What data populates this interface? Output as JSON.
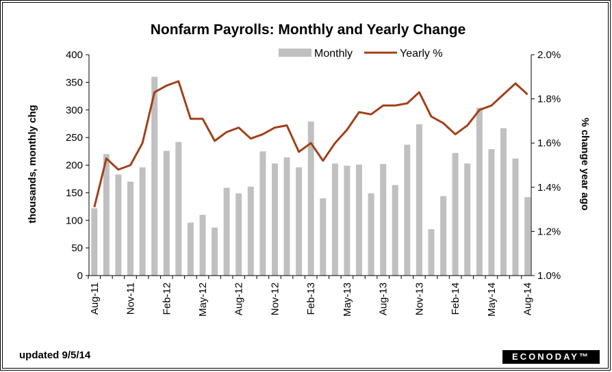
{
  "chart_data": {
    "type": "bar+line",
    "title": "Nonfarm Payrolls: Monthly and Yearly Change",
    "ylabel_left": "thousands, monthly chg",
    "ylabel_right": "% change year ago",
    "ylim_left": [
      0,
      400
    ],
    "ylim_right": [
      1.0,
      2.0
    ],
    "left_ticks": [
      "0",
      "50",
      "100",
      "150",
      "200",
      "250",
      "300",
      "350",
      "400"
    ],
    "right_ticks": [
      "1.0%",
      "1.2%",
      "1.4%",
      "1.6%",
      "1.8%",
      "2.0%"
    ],
    "x_tick_labels": [
      "Aug-11",
      "Nov-11",
      "Feb-12",
      "May-12",
      "Aug-12",
      "Nov-12",
      "Feb-13",
      "May-13",
      "Aug-13",
      "Nov-13",
      "Feb-14",
      "May-14",
      "Aug-14"
    ],
    "months": [
      "Aug-11",
      "Sep-11",
      "Oct-11",
      "Nov-11",
      "Dec-11",
      "Jan-12",
      "Feb-12",
      "Mar-12",
      "Apr-12",
      "May-12",
      "Jun-12",
      "Jul-12",
      "Aug-12",
      "Sep-12",
      "Oct-12",
      "Nov-12",
      "Dec-12",
      "Jan-13",
      "Feb-13",
      "Mar-13",
      "Apr-13",
      "May-13",
      "Jun-13",
      "Jul-13",
      "Aug-13",
      "Sep-13",
      "Oct-13",
      "Nov-13",
      "Dec-13",
      "Jan-14",
      "Feb-14",
      "Mar-14",
      "Apr-14",
      "May-14",
      "Jun-14",
      "Jul-14",
      "Aug-14"
    ],
    "series": [
      {
        "name": "Monthly",
        "type": "bar",
        "color": "#c0c0c0",
        "values": [
          122,
          220,
          183,
          170,
          196,
          360,
          226,
          242,
          96,
          110,
          87,
          159,
          149,
          161,
          225,
          203,
          214,
          196,
          279,
          140,
          203,
          199,
          201,
          149,
          202,
          164,
          237,
          274,
          84,
          144,
          222,
          203,
          304,
          229,
          267,
          212,
          142
        ]
      },
      {
        "name": "Yearly %",
        "type": "line",
        "color": "#a0401a",
        "values": [
          1.31,
          1.53,
          1.48,
          1.5,
          1.6,
          1.83,
          1.86,
          1.88,
          1.71,
          1.71,
          1.61,
          1.65,
          1.67,
          1.62,
          1.64,
          1.67,
          1.68,
          1.56,
          1.6,
          1.52,
          1.6,
          1.66,
          1.74,
          1.73,
          1.77,
          1.77,
          1.78,
          1.83,
          1.72,
          1.69,
          1.64,
          1.68,
          1.75,
          1.77,
          1.82,
          1.87,
          1.82
        ]
      }
    ],
    "grid": false,
    "legend": "top"
  },
  "footer": {
    "updated": "updated 9/5/14",
    "logo": "ECONODAY™"
  }
}
